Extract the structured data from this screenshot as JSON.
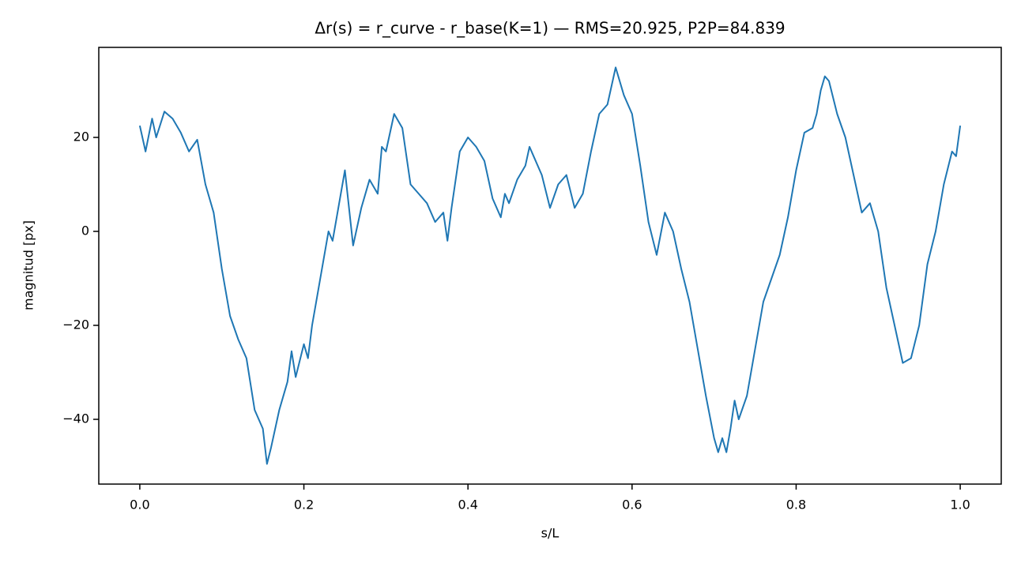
{
  "chart_data": {
    "type": "line",
    "title": "Δr(s) = r_curve - r_base(K=1) — RMS=20.925, P2P=84.839",
    "x_label": "s/L",
    "y_label": "magnitud [px]",
    "x": [
      0.0,
      0.007,
      0.015,
      0.02,
      0.03,
      0.04,
      0.05,
      0.06,
      0.07,
      0.08,
      0.09,
      0.1,
      0.11,
      0.12,
      0.13,
      0.14,
      0.15,
      0.155,
      0.16,
      0.17,
      0.18,
      0.185,
      0.19,
      0.2,
      0.205,
      0.21,
      0.22,
      0.23,
      0.235,
      0.245,
      0.25,
      0.26,
      0.27,
      0.28,
      0.29,
      0.295,
      0.3,
      0.31,
      0.32,
      0.33,
      0.34,
      0.35,
      0.36,
      0.37,
      0.375,
      0.38,
      0.39,
      0.4,
      0.41,
      0.42,
      0.43,
      0.44,
      0.445,
      0.45,
      0.46,
      0.47,
      0.475,
      0.48,
      0.49,
      0.5,
      0.51,
      0.52,
      0.53,
      0.54,
      0.55,
      0.56,
      0.57,
      0.58,
      0.59,
      0.6,
      0.61,
      0.62,
      0.63,
      0.64,
      0.65,
      0.66,
      0.67,
      0.68,
      0.69,
      0.7,
      0.705,
      0.71,
      0.715,
      0.72,
      0.725,
      0.73,
      0.74,
      0.75,
      0.76,
      0.77,
      0.78,
      0.79,
      0.8,
      0.81,
      0.82,
      0.825,
      0.83,
      0.835,
      0.84,
      0.85,
      0.86,
      0.87,
      0.88,
      0.89,
      0.9,
      0.91,
      0.92,
      0.93,
      0.94,
      0.95,
      0.96,
      0.97,
      0.98,
      0.99,
      0.995,
      1.0
    ],
    "series": [
      {
        "name": "Δr",
        "color": "#1f77b4",
        "values": [
          22.5,
          17,
          24,
          20,
          25.5,
          24,
          21,
          17,
          19.5,
          10,
          4,
          -8,
          -18,
          -23,
          -27,
          -38,
          -42,
          -49.5,
          -46,
          -38,
          -32,
          -25.5,
          -31,
          -24,
          -27,
          -20,
          -10,
          0,
          -2,
          8,
          13,
          -3,
          5,
          11,
          8,
          18,
          17,
          25,
          22,
          10,
          8,
          6,
          2,
          4,
          -2,
          5,
          17,
          20,
          18,
          15,
          7,
          3,
          8,
          6,
          11,
          14,
          18,
          16,
          12,
          5,
          10,
          12,
          5,
          8,
          17,
          25,
          27,
          34.9,
          29,
          25,
          14,
          2,
          -5,
          4,
          0,
          -8,
          -15,
          -25,
          -35,
          -44,
          -47,
          -44,
          -47,
          -42,
          -36,
          -40,
          -35,
          -25,
          -15,
          -10,
          -5,
          3,
          13,
          21,
          22,
          25,
          30,
          33,
          32,
          25,
          20,
          12,
          4,
          6,
          0,
          -12,
          -20,
          -28,
          -27,
          -20,
          -7,
          0,
          10,
          17,
          16,
          22.5
        ]
      }
    ],
    "xlim": [
      -0.05,
      1.05
    ],
    "ylim": [
      -53.78,
      39.16
    ],
    "xticks": [
      {
        "value": 0,
        "label": "0.0"
      },
      0.2,
      0.4,
      0.6,
      0.8,
      {
        "value": 1,
        "label": "1.0"
      }
    ],
    "yticks": [
      {
        "value": -40,
        "label": "−40"
      },
      {
        "value": -20,
        "label": "−20"
      },
      0,
      20
    ],
    "grid": false
  }
}
